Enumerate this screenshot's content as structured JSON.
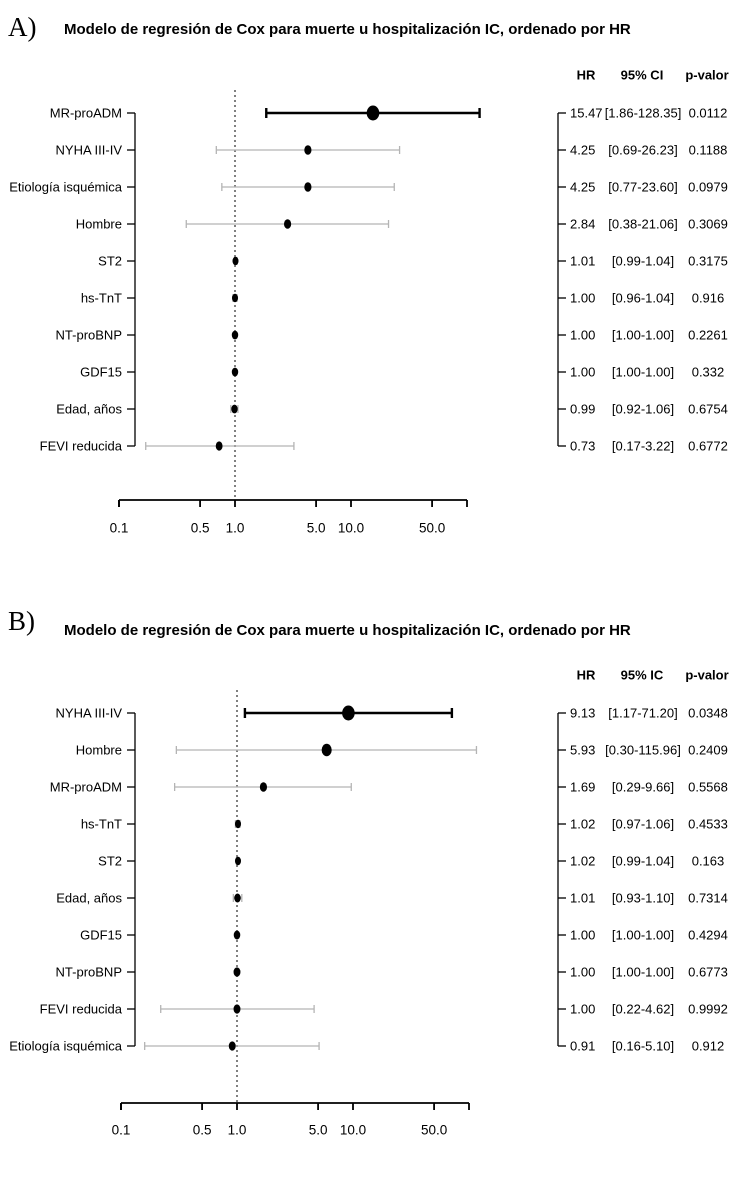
{
  "figure": {
    "background": "#ffffff",
    "text_color": "#000000",
    "nonsignificant_line_color": "#b4b4b4",
    "significant_line_color": "#000000",
    "point_color": "#000000"
  },
  "chart_data": [
    {
      "type": "forest",
      "panel_letter": "A)",
      "title": "Modelo de regresión de Cox para muerte u hospitalización IC, ordenado por HR",
      "columns": {
        "hr": "HR",
        "ci": "95% CI",
        "p": "p-valor"
      },
      "x_axis": {
        "scale": "log",
        "range": [
          0.1,
          100
        ],
        "ticks": [
          0.1,
          0.5,
          1.0,
          5.0,
          10.0,
          50.0
        ],
        "tick_labels": [
          "0.1",
          "0.5",
          "1.0",
          "5.0",
          "10.0",
          "50.0"
        ],
        "reference_line": 1.0
      },
      "rows": [
        {
          "label": "MR-proADM",
          "hr": 15.47,
          "ci_low": 1.86,
          "ci_high": 128.35,
          "hr_text": "15.47",
          "ci_text": "[1.86-128.35]",
          "p_text": "0.0112",
          "significant": true,
          "point_size": 1.0
        },
        {
          "label": "NYHA III-IV",
          "hr": 4.25,
          "ci_low": 0.69,
          "ci_high": 26.23,
          "hr_text": "4.25",
          "ci_text": "[0.69-26.23]",
          "p_text": "0.1188",
          "significant": false,
          "point_size": 0.57
        },
        {
          "label": "Etiología isquémica",
          "hr": 4.25,
          "ci_low": 0.77,
          "ci_high": 23.6,
          "hr_text": "4.25",
          "ci_text": "[0.77-23.60]",
          "p_text": "0.0979",
          "significant": false,
          "point_size": 0.57
        },
        {
          "label": "Hombre",
          "hr": 2.84,
          "ci_low": 0.38,
          "ci_high": 21.06,
          "hr_text": "2.84",
          "ci_text": "[0.38-21.06]",
          "p_text": "0.3069",
          "significant": false,
          "point_size": 0.57
        },
        {
          "label": "ST2",
          "hr": 1.01,
          "ci_low": 0.99,
          "ci_high": 1.04,
          "hr_text": "1.01",
          "ci_text": "[0.99-1.04]",
          "p_text": "0.3175",
          "significant": false,
          "point_size": 0.48
        },
        {
          "label": "hs-TnT",
          "hr": 1.0,
          "ci_low": 0.96,
          "ci_high": 1.04,
          "hr_text": "1.00",
          "ci_text": "[0.96-1.04]",
          "p_text": "0.916",
          "significant": false,
          "point_size": 0.48
        },
        {
          "label": "NT-proBNP",
          "hr": 1.0,
          "ci_low": 1.0,
          "ci_high": 1.0,
          "hr_text": "1.00",
          "ci_text": "[1.00-1.00]",
          "p_text": "0.2261",
          "significant": false,
          "point_size": 0.51
        },
        {
          "label": "GDF15",
          "hr": 1.0,
          "ci_low": 1.0,
          "ci_high": 1.0,
          "hr_text": "1.00",
          "ci_text": "[1.00-1.00]",
          "p_text": "0.332",
          "significant": false,
          "point_size": 0.51
        },
        {
          "label": "Edad, años",
          "hr": 0.99,
          "ci_low": 0.92,
          "ci_high": 1.06,
          "hr_text": "0.99",
          "ci_text": "[0.92-1.06]",
          "p_text": "0.6754",
          "significant": false,
          "point_size": 0.51
        },
        {
          "label": "FEVI reducida",
          "hr": 0.73,
          "ci_low": 0.17,
          "ci_high": 3.22,
          "hr_text": "0.73",
          "ci_text": "[0.17-3.22]",
          "p_text": "0.6772",
          "significant": false,
          "point_size": 0.54
        }
      ]
    },
    {
      "type": "forest",
      "panel_letter": "B)",
      "title": "Modelo de regresión de Cox para muerte u hospitalización IC, ordenado por HR",
      "columns": {
        "hr": "HR",
        "ci": "95% IC",
        "p": "p-valor"
      },
      "x_axis": {
        "scale": "log",
        "range": [
          0.1,
          100
        ],
        "ticks": [
          0.1,
          0.5,
          1.0,
          5.0,
          10.0,
          50.0
        ],
        "tick_labels": [
          "0.1",
          "0.5",
          "1.0",
          "5.0",
          "10.0",
          "50.0"
        ],
        "reference_line": 1.0
      },
      "rows": [
        {
          "label": "NYHA III-IV",
          "hr": 9.13,
          "ci_low": 1.17,
          "ci_high": 71.2,
          "hr_text": "9.13",
          "ci_text": "[1.17-71.20]",
          "p_text": "0.0348",
          "significant": true,
          "point_size": 1.0
        },
        {
          "label": "Hombre",
          "hr": 5.93,
          "ci_low": 0.3,
          "ci_high": 115.96,
          "hr_text": "5.93",
          "ci_text": "[0.30-115.96]",
          "p_text": "0.2409",
          "significant": false,
          "point_size": 0.8
        },
        {
          "label": "MR-proADM",
          "hr": 1.69,
          "ci_low": 0.29,
          "ci_high": 9.66,
          "hr_text": "1.69",
          "ci_text": "[0.29-9.66]",
          "p_text": "0.5568",
          "significant": false,
          "point_size": 0.57
        },
        {
          "label": "hs-TnT",
          "hr": 1.02,
          "ci_low": 0.97,
          "ci_high": 1.06,
          "hr_text": "1.02",
          "ci_text": "[0.97-1.06]",
          "p_text": "0.4533",
          "significant": false,
          "point_size": 0.48
        },
        {
          "label": "ST2",
          "hr": 1.02,
          "ci_low": 0.99,
          "ci_high": 1.04,
          "hr_text": "1.02",
          "ci_text": "[0.99-1.04]",
          "p_text": "0.163",
          "significant": false,
          "point_size": 0.48
        },
        {
          "label": "Edad, años",
          "hr": 1.01,
          "ci_low": 0.93,
          "ci_high": 1.1,
          "hr_text": "1.01",
          "ci_text": "[0.93-1.10]",
          "p_text": "0.7314",
          "significant": false,
          "point_size": 0.52
        },
        {
          "label": "GDF15",
          "hr": 1.0,
          "ci_low": 1.0,
          "ci_high": 1.0,
          "hr_text": "1.00",
          "ci_text": "[1.00-1.00]",
          "p_text": "0.4294",
          "significant": false,
          "point_size": 0.52
        },
        {
          "label": "NT-proBNP",
          "hr": 1.0,
          "ci_low": 1.0,
          "ci_high": 1.0,
          "hr_text": "1.00",
          "ci_text": "[1.00-1.00]",
          "p_text": "0.6773",
          "significant": false,
          "point_size": 0.55
        },
        {
          "label": "FEVI reducida",
          "hr": 1.0,
          "ci_low": 0.22,
          "ci_high": 4.62,
          "hr_text": "1.00",
          "ci_text": "[0.22-4.62]",
          "p_text": "0.9992",
          "significant": false,
          "point_size": 0.55
        },
        {
          "label": "Etiología isquémica",
          "hr": 0.91,
          "ci_low": 0.16,
          "ci_high": 5.1,
          "hr_text": "0.91",
          "ci_text": "[0.16-5.10]",
          "p_text": "0.912",
          "significant": false,
          "point_size": 0.55
        }
      ]
    }
  ]
}
